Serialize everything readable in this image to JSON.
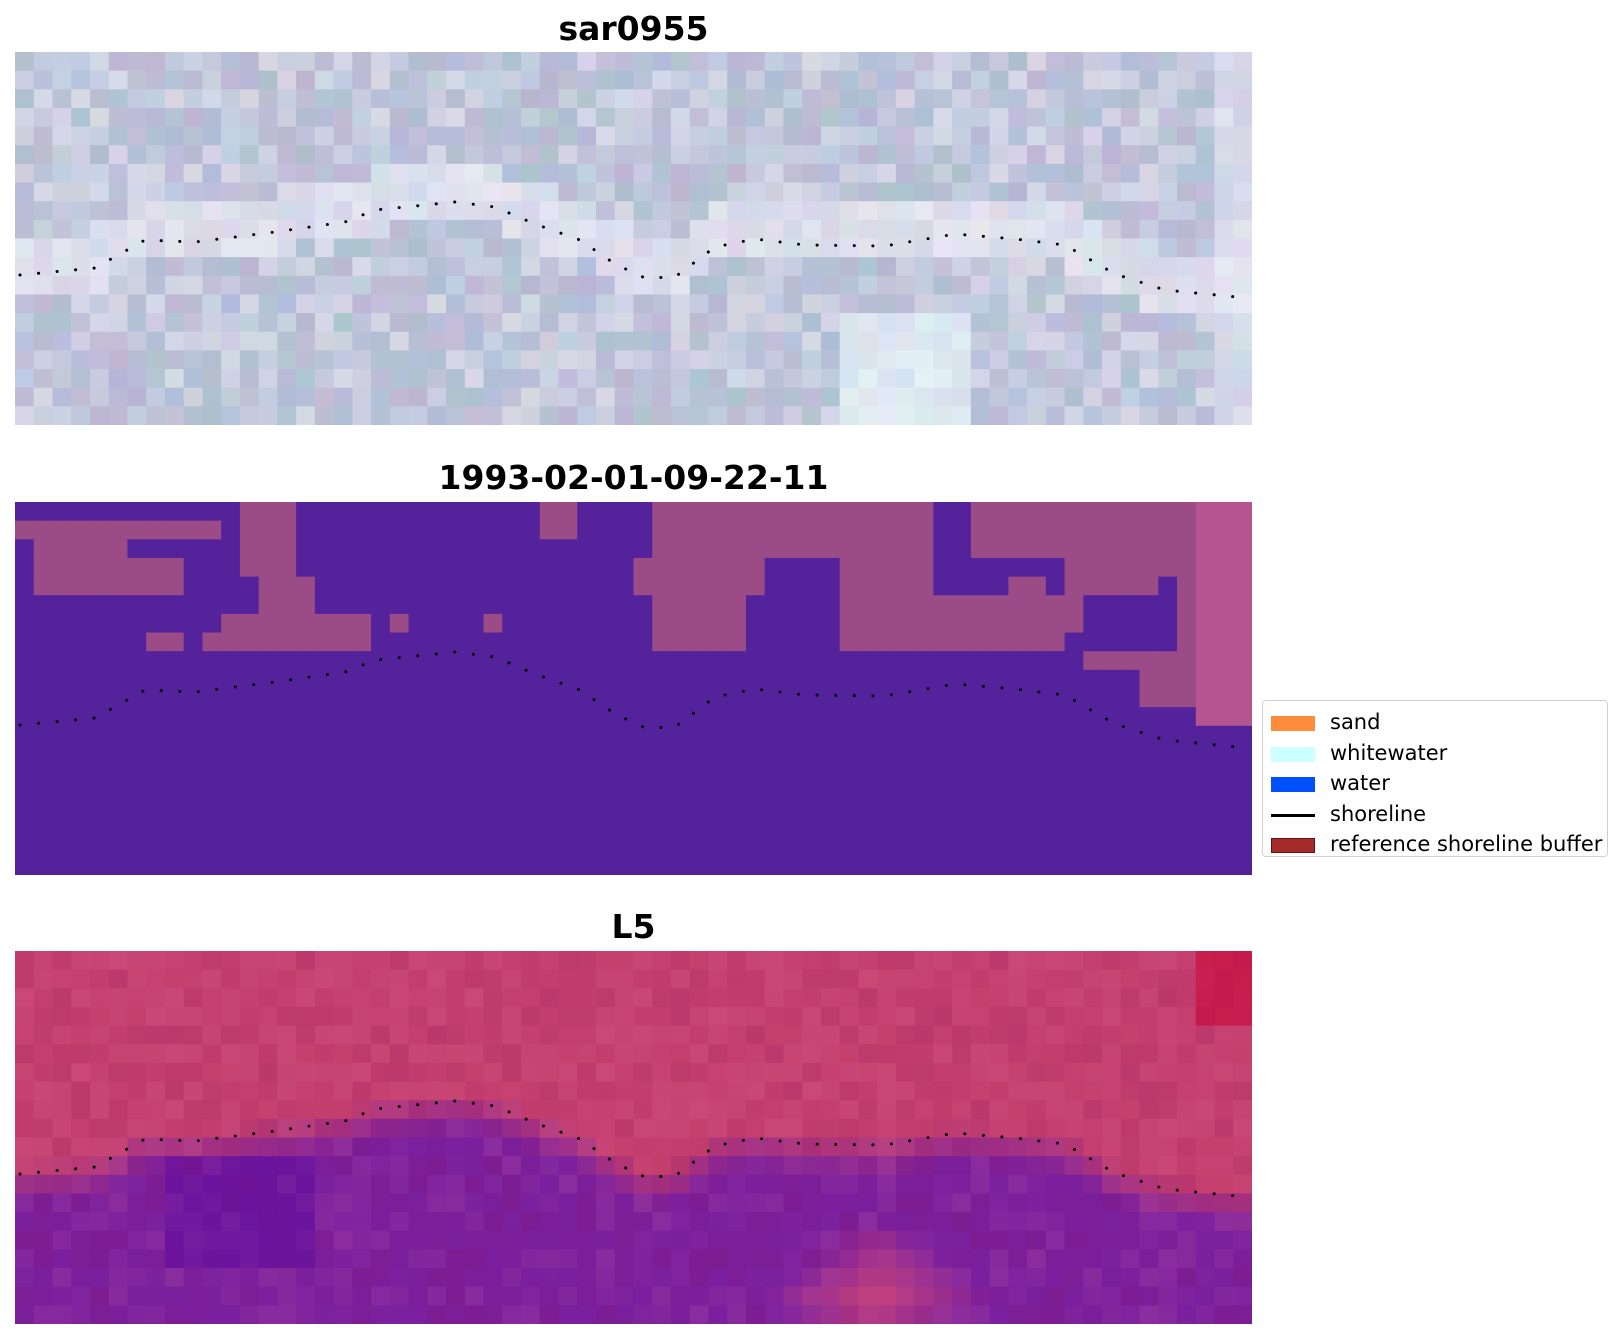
{
  "panels": [
    {
      "title": "sar0955",
      "style": "rgb"
    },
    {
      "title": "1993-02-01-09-22-11",
      "style": "classification"
    },
    {
      "title": "L5",
      "style": "index"
    }
  ],
  "legend": [
    {
      "label": "sand",
      "color": "#ff8c3a",
      "kind": "patch"
    },
    {
      "label": "whitewater",
      "color": "#ccffff",
      "kind": "patch"
    },
    {
      "label": "water",
      "color": "#0050ff",
      "kind": "patch"
    },
    {
      "label": "shoreline",
      "color": "#000000",
      "kind": "line"
    },
    {
      "label": "reference shoreline buffer",
      "color": "#a52a2a",
      "kind": "patch"
    }
  ],
  "colors": {
    "rgb_base": "#bcc4d8",
    "class_land": "#9b4b85",
    "class_water": "#54229a",
    "index_land": "#c6406e",
    "index_water": "#7a1f9e"
  },
  "chart_data": {
    "type": "heatmap",
    "panels": [
      "sar0955",
      "1993-02-01-09-22-11",
      "L5"
    ],
    "legend": [
      "sand",
      "whitewater",
      "water",
      "shoreline",
      "reference shoreline buffer"
    ],
    "shoreline_style": "dotted black"
  }
}
